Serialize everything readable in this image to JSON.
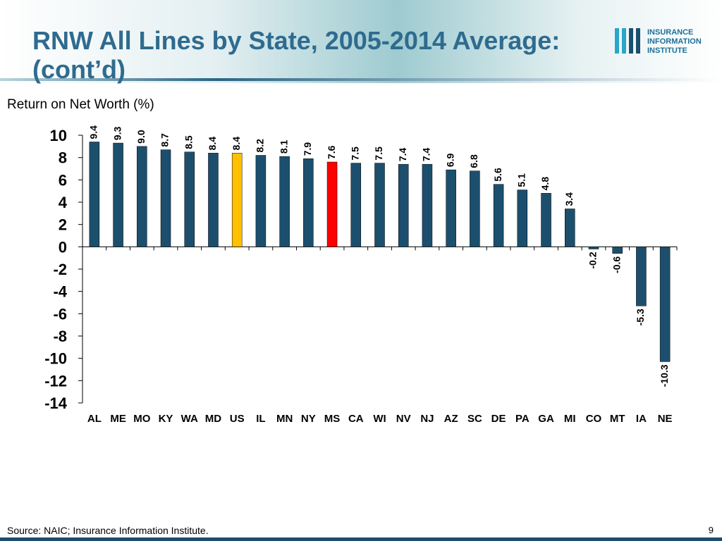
{
  "chart_data": {
    "type": "bar",
    "title": [
      "RNW All Lines by State, 2005-2014 Average:",
      "(cont’d)"
    ],
    "y_label": "Return on Net Worth (%)",
    "categories": [
      "AL",
      "ME",
      "MO",
      "KY",
      "WA",
      "MD",
      "US",
      "IL",
      "MN",
      "NY",
      "MS",
      "CA",
      "WI",
      "NV",
      "NJ",
      "AZ",
      "SC",
      "DE",
      "PA",
      "GA",
      "MI",
      "CO",
      "MT",
      "IA",
      "NE"
    ],
    "values": [
      9.4,
      9.3,
      9.0,
      8.7,
      8.5,
      8.4,
      8.4,
      8.2,
      8.1,
      7.9,
      7.6,
      7.5,
      7.5,
      7.4,
      7.4,
      6.9,
      6.8,
      5.6,
      5.1,
      4.8,
      3.4,
      -0.2,
      -0.6,
      -5.3,
      -10.3
    ],
    "value_labels": [
      "9.4",
      "9.3",
      "9.0",
      "8.7",
      "8.5",
      "8.4",
      "8.4",
      "8.2",
      "8.1",
      "7.9",
      "7.6",
      "7.5",
      "7.5",
      "7.4",
      "7.4",
      "6.9",
      "6.8",
      "5.6",
      "5.1",
      "4.8",
      "3.4",
      "-0.2",
      "-0.6",
      "-5.3",
      "-10.3"
    ],
    "colors": [
      "#1c4f6d",
      "#1c4f6d",
      "#1c4f6d",
      "#1c4f6d",
      "#1c4f6d",
      "#1c4f6d",
      "#ffc000",
      "#1c4f6d",
      "#1c4f6d",
      "#1c4f6d",
      "#ff0000",
      "#1c4f6d",
      "#1c4f6d",
      "#1c4f6d",
      "#1c4f6d",
      "#1c4f6d",
      "#1c4f6d",
      "#1c4f6d",
      "#1c4f6d",
      "#1c4f6d",
      "#1c4f6d",
      "#1c4f6d",
      "#1c4f6d",
      "#1c4f6d",
      "#1c4f6d"
    ],
    "ylim": [
      -14,
      10
    ],
    "yticks": [
      10,
      8,
      6,
      4,
      2,
      0,
      -2,
      -4,
      -6,
      -8,
      -10,
      -12,
      -14
    ],
    "grid": false
  },
  "logo": [
    "INSURANCE",
    "INFORMATION",
    "INSTITUTE"
  ],
  "footer": {
    "source": "Source: NAIC; Insurance Information Institute.",
    "page": "9"
  }
}
